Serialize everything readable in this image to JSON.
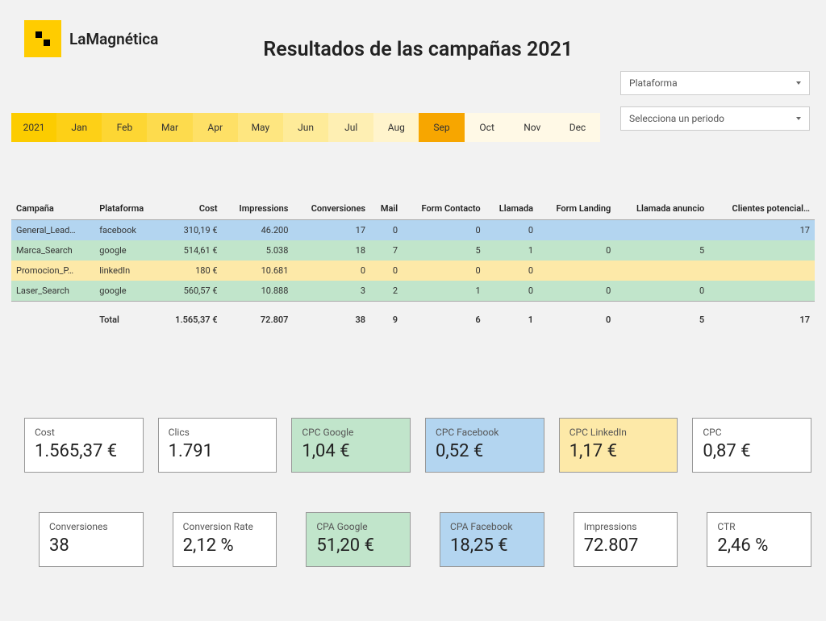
{
  "brand": "LaMagnética",
  "pageTitle": "Resultados de las campañas 2021",
  "dropdowns": {
    "platform": "Plataforma",
    "period": "Selecciona un periodo"
  },
  "colors": {
    "accentYellow": "#ffcc00",
    "monthGradient": [
      "#fccc00",
      "#fdd017",
      "#fdd633",
      "#fddb4d",
      "#fee066",
      "#fee680",
      "#feeb99",
      "#feefb3",
      "#fff4cc",
      "#fff9e6",
      "#fff9e6",
      "#fff9e6",
      "#fff9e6"
    ],
    "monthSelected": "#f7a600",
    "rowBlue": "#b3d5f0",
    "rowGreen": "#c1e5cb",
    "rowYellow": "#fde9a8",
    "pageBg": "#f2f2f2",
    "cardBorder": "#999999"
  },
  "months": {
    "items": [
      "2021",
      "Jan",
      "Feb",
      "Mar",
      "Apr",
      "May",
      "Jun",
      "Jul",
      "Aug",
      "Sep",
      "Oct",
      "Nov",
      "Dec"
    ],
    "selectedIndex": 9
  },
  "table": {
    "columns": [
      "Campaña",
      "Plataforma",
      "Cost",
      "Impressions",
      "Conversiones",
      "Mail",
      "Form Contacto",
      "Llamada",
      "Form Landing",
      "Llamada anuncio",
      "Clientes potencial…"
    ],
    "numericFrom": 2,
    "rows": [
      {
        "color": "row-blue",
        "cells": [
          "General_Lead…",
          "facebook",
          "310,19 €",
          "46.200",
          "17",
          "0",
          "0",
          "0",
          "",
          "",
          "17"
        ]
      },
      {
        "color": "row-green",
        "cells": [
          "Marca_Search",
          "google",
          "514,61 €",
          "5.038",
          "18",
          "7",
          "5",
          "1",
          "0",
          "5",
          ""
        ]
      },
      {
        "color": "row-yellow",
        "cells": [
          "Promocion_P…",
          "linkedIn",
          "180 €",
          "10.681",
          "0",
          "0",
          "0",
          "0",
          "",
          "",
          ""
        ]
      },
      {
        "color": "row-green",
        "cells": [
          "Laser_Search",
          "google",
          "560,57 €",
          "10.888",
          "3",
          "2",
          "1",
          "0",
          "0",
          "0",
          ""
        ]
      }
    ],
    "total": [
      "",
      "Total",
      "1.565,37 €",
      "72.807",
      "38",
      "9",
      "6",
      "1",
      "0",
      "5",
      "17"
    ]
  },
  "cardsRow1": [
    {
      "label": "Cost",
      "value": "1.565,37 €",
      "bg": "bg-white"
    },
    {
      "label": "Clics",
      "value": "1.791",
      "bg": "bg-white"
    },
    {
      "label": "CPC Google",
      "value": "1,04 €",
      "bg": "bg-green"
    },
    {
      "label": "CPC Facebook",
      "value": "0,52 €",
      "bg": "bg-blue"
    },
    {
      "label": "CPC LinkedIn",
      "value": "1,17 €",
      "bg": "bg-yellow"
    },
    {
      "label": "CPC",
      "value": "0,87 €",
      "bg": "bg-white"
    }
  ],
  "cardsRow2": [
    {
      "label": "Conversiones",
      "value": "38",
      "bg": "bg-white"
    },
    {
      "label": "Conversion Rate",
      "value": "2,12 %",
      "bg": "bg-white"
    },
    {
      "label": "CPA Google",
      "value": "51,20 €",
      "bg": "bg-green"
    },
    {
      "label": "CPA Facebook",
      "value": "18,25 €",
      "bg": "bg-blue"
    },
    {
      "label": "Impressions",
      "value": "72.807",
      "bg": "bg-white"
    },
    {
      "label": "CTR",
      "value": "2,46 %",
      "bg": "bg-white"
    }
  ]
}
